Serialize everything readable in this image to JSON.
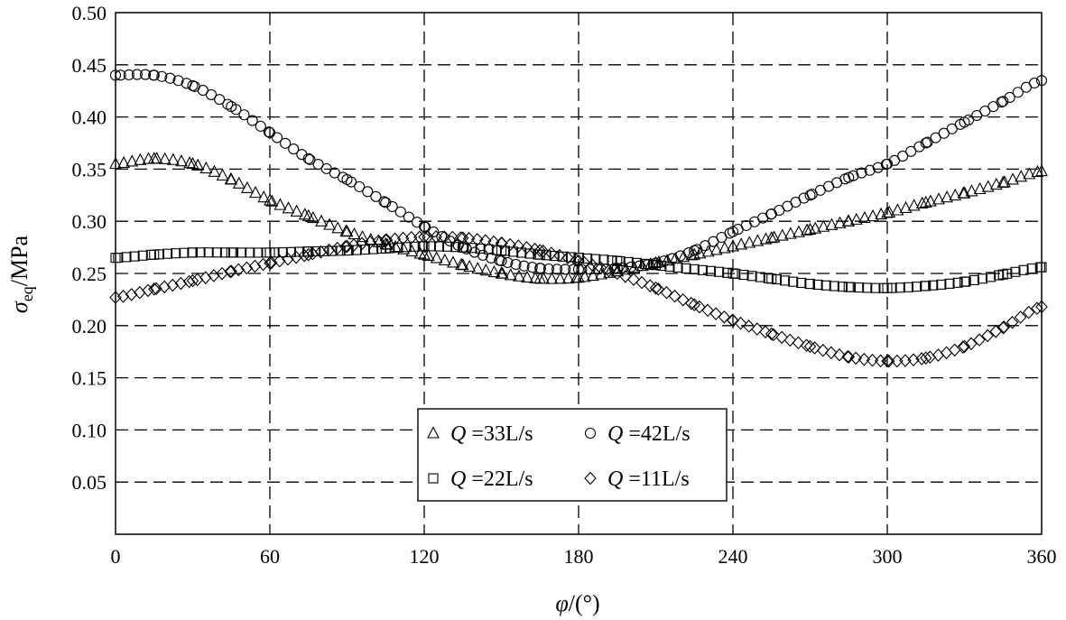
{
  "chart_data": {
    "type": "scatter",
    "xlabel_symbol": "φ",
    "xlabel_unit": "/(°)",
    "ylabel_symbol": "σ",
    "ylabel_subscript": "eq",
    "ylabel_unit": "/MPa",
    "xlim": [
      0,
      360
    ],
    "ylim": [
      0,
      0.5
    ],
    "x_ticks": [
      "0",
      "60",
      "120",
      "180",
      "240",
      "300",
      "360"
    ],
    "y_ticks": [
      "0.05",
      "0.10",
      "0.15",
      "0.20",
      "0.25",
      "0.30",
      "0.35",
      "0.40",
      "0.45",
      "0.50"
    ],
    "grid": true,
    "legend_position": "bottom-center",
    "series": [
      {
        "name": "Q =33L/s",
        "legend_symbol": "Q",
        "legend_value": "=33L/s",
        "marker": "triangle",
        "x": [
          0,
          15,
          30,
          45,
          60,
          75,
          90,
          105,
          120,
          135,
          150,
          165,
          180,
          195,
          210,
          225,
          240,
          255,
          270,
          285,
          300,
          315,
          330,
          345,
          360
        ],
        "y": [
          0.355,
          0.36,
          0.355,
          0.34,
          0.32,
          0.305,
          0.29,
          0.278,
          0.268,
          0.258,
          0.25,
          0.245,
          0.246,
          0.252,
          0.26,
          0.268,
          0.276,
          0.284,
          0.292,
          0.3,
          0.308,
          0.318,
          0.327,
          0.337,
          0.348
        ]
      },
      {
        "name": "Q =42L/s",
        "legend_symbol": "Q",
        "legend_value": "=42L/s",
        "marker": "circle",
        "x": [
          0,
          15,
          30,
          45,
          60,
          75,
          90,
          105,
          120,
          135,
          150,
          165,
          180,
          195,
          210,
          225,
          240,
          255,
          270,
          285,
          300,
          315,
          330,
          345,
          360
        ],
        "y": [
          0.44,
          0.44,
          0.43,
          0.41,
          0.385,
          0.36,
          0.34,
          0.318,
          0.295,
          0.275,
          0.262,
          0.255,
          0.254,
          0.255,
          0.26,
          0.272,
          0.29,
          0.307,
          0.325,
          0.342,
          0.355,
          0.375,
          0.395,
          0.415,
          0.435
        ]
      },
      {
        "name": "Q =22L/s",
        "legend_symbol": "Q",
        "legend_value": "=22L/s",
        "marker": "square",
        "x": [
          0,
          15,
          30,
          45,
          60,
          75,
          90,
          105,
          120,
          135,
          150,
          165,
          180,
          195,
          210,
          225,
          240,
          255,
          270,
          285,
          300,
          315,
          330,
          345,
          360
        ],
        "y": [
          0.265,
          0.268,
          0.27,
          0.27,
          0.27,
          0.271,
          0.272,
          0.274,
          0.276,
          0.275,
          0.272,
          0.268,
          0.265,
          0.262,
          0.258,
          0.254,
          0.25,
          0.245,
          0.24,
          0.237,
          0.236,
          0.238,
          0.242,
          0.249,
          0.256
        ]
      },
      {
        "name": "Q =11L/s",
        "legend_symbol": "Q",
        "legend_value": "=11L/s",
        "marker": "diamond",
        "x": [
          0,
          15,
          30,
          45,
          60,
          75,
          90,
          105,
          120,
          135,
          150,
          165,
          180,
          195,
          210,
          225,
          240,
          255,
          270,
          285,
          300,
          315,
          330,
          345,
          360
        ],
        "y": [
          0.227,
          0.235,
          0.243,
          0.252,
          0.26,
          0.268,
          0.276,
          0.282,
          0.285,
          0.284,
          0.279,
          0.272,
          0.262,
          0.25,
          0.236,
          0.22,
          0.205,
          0.192,
          0.18,
          0.17,
          0.166,
          0.169,
          0.18,
          0.198,
          0.218
        ]
      }
    ]
  }
}
